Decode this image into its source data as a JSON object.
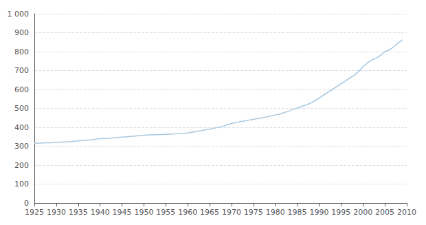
{
  "chart_data": {
    "type": "line",
    "x": [
      1925,
      1926,
      1927,
      1928,
      1929,
      1930,
      1931,
      1932,
      1933,
      1934,
      1935,
      1936,
      1937,
      1938,
      1939,
      1940,
      1941,
      1942,
      1943,
      1944,
      1945,
      1946,
      1947,
      1948,
      1949,
      1950,
      1951,
      1952,
      1953,
      1954,
      1955,
      1956,
      1957,
      1958,
      1959,
      1960,
      1961,
      1962,
      1963,
      1964,
      1965,
      1966,
      1967,
      1968,
      1969,
      1970,
      1971,
      1972,
      1973,
      1974,
      1975,
      1976,
      1977,
      1978,
      1979,
      1980,
      1981,
      1982,
      1983,
      1984,
      1985,
      1986,
      1987,
      1988,
      1989,
      1990,
      1991,
      1992,
      1993,
      1994,
      1995,
      1996,
      1997,
      1998,
      1999,
      2000,
      2001,
      2002,
      2003,
      2004,
      2005,
      2006,
      2007,
      2008,
      2009
    ],
    "values": [
      315,
      316,
      317,
      318,
      318,
      320,
      322,
      323,
      323,
      326,
      328,
      330,
      332,
      334,
      337,
      340,
      341,
      342,
      344,
      346,
      348,
      350,
      352,
      354,
      356,
      358,
      360,
      360,
      361,
      362,
      363,
      364,
      365,
      366,
      368,
      370,
      374,
      378,
      382,
      386,
      390,
      395,
      400,
      405,
      413,
      420,
      425,
      430,
      434,
      438,
      442,
      446,
      450,
      455,
      460,
      465,
      470,
      477,
      485,
      494,
      502,
      510,
      518,
      527,
      540,
      555,
      570,
      585,
      600,
      615,
      630,
      645,
      660,
      675,
      695,
      720,
      740,
      755,
      765,
      780,
      800,
      808,
      825,
      845,
      862
    ],
    "color": "#a8c8e0",
    "xlim": [
      1925,
      2010
    ],
    "xticks": [
      1925,
      1930,
      1935,
      1940,
      1945,
      1950,
      1955,
      1960,
      1965,
      1970,
      1975,
      1980,
      1985,
      1990,
      1995,
      2000,
      2005,
      2010
    ],
    "ylim": [
      0,
      1000
    ],
    "yticks": [
      0,
      100,
      200,
      300,
      400,
      500,
      600,
      700,
      800,
      900,
      {
        "value": 1000,
        "label": "1 000"
      }
    ],
    "grid": true
  }
}
